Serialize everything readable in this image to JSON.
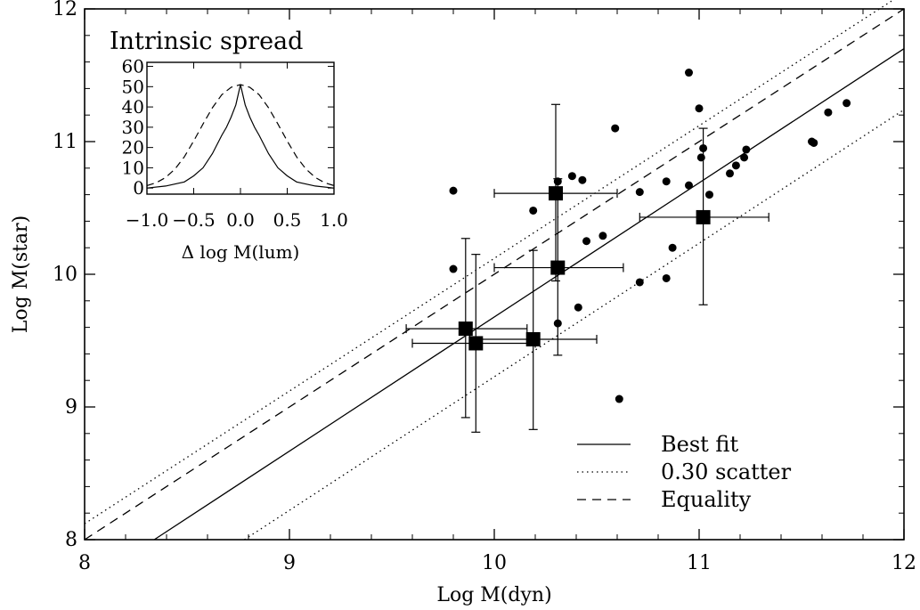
{
  "chart_data": [
    {
      "type": "scatter",
      "title": "",
      "xlabel": "Log M(dyn)",
      "ylabel": "Log M(star)",
      "xlim": [
        8,
        12
      ],
      "ylim": [
        8,
        12
      ],
      "xticks": [
        "8",
        "9",
        "10",
        "11",
        "12"
      ],
      "yticks": [
        "8",
        "9",
        "10",
        "11",
        "12"
      ],
      "legend": {
        "placement": "bottom-right",
        "entries": [
          {
            "label": "Best fit",
            "style": "solid"
          },
          {
            "label": "0.30 scatter",
            "style": "dotted"
          },
          {
            "label": "Equality",
            "style": "dashed"
          }
        ]
      },
      "lines": {
        "best_fit": {
          "x": [
            8.34,
            12.0
          ],
          "y": [
            8.0,
            11.7
          ]
        },
        "scatter_upper": {
          "x": [
            8.0,
            12.0
          ],
          "y": [
            8.12,
            12.12
          ]
        },
        "scatter_lower": {
          "x": [
            8.78,
            12.0
          ],
          "y": [
            8.0,
            11.24
          ]
        },
        "equality": {
          "x": [
            8.0,
            12.0
          ],
          "y": [
            8.0,
            12.0
          ]
        }
      },
      "points": [
        {
          "x": 9.8,
          "y": 10.63
        },
        {
          "x": 9.8,
          "y": 10.04
        },
        {
          "x": 10.19,
          "y": 10.48
        },
        {
          "x": 10.31,
          "y": 10.7
        },
        {
          "x": 10.38,
          "y": 10.74
        },
        {
          "x": 10.43,
          "y": 10.71
        },
        {
          "x": 10.45,
          "y": 10.25
        },
        {
          "x": 10.53,
          "y": 10.29
        },
        {
          "x": 10.59,
          "y": 11.1
        },
        {
          "x": 10.31,
          "y": 9.63
        },
        {
          "x": 10.41,
          "y": 9.75
        },
        {
          "x": 10.61,
          "y": 9.06
        },
        {
          "x": 10.71,
          "y": 10.62
        },
        {
          "x": 10.71,
          "y": 9.94
        },
        {
          "x": 10.84,
          "y": 10.7
        },
        {
          "x": 10.84,
          "y": 9.97
        },
        {
          "x": 10.87,
          "y": 10.2
        },
        {
          "x": 10.95,
          "y": 11.52
        },
        {
          "x": 10.95,
          "y": 10.67
        },
        {
          "x": 11.0,
          "y": 11.25
        },
        {
          "x": 11.01,
          "y": 10.88
        },
        {
          "x": 11.02,
          "y": 10.95
        },
        {
          "x": 11.05,
          "y": 10.6
        },
        {
          "x": 11.15,
          "y": 10.76
        },
        {
          "x": 11.18,
          "y": 10.82
        },
        {
          "x": 11.22,
          "y": 10.88
        },
        {
          "x": 11.23,
          "y": 10.94
        },
        {
          "x": 11.55,
          "y": 11.0
        },
        {
          "x": 11.56,
          "y": 10.99
        },
        {
          "x": 11.63,
          "y": 11.22
        },
        {
          "x": 11.72,
          "y": 11.29
        }
      ],
      "binned": [
        {
          "x": 9.86,
          "y": 9.59,
          "x_lo": 9.57,
          "x_hi": 10.16,
          "y_lo": 8.92,
          "y_hi": 10.27
        },
        {
          "x": 9.91,
          "y": 9.48,
          "x_lo": 9.6,
          "x_hi": 10.2,
          "y_lo": 8.81,
          "y_hi": 10.15
        },
        {
          "x": 10.19,
          "y": 9.51,
          "x_lo": 9.88,
          "x_hi": 10.5,
          "y_lo": 8.83,
          "y_hi": 10.18
        },
        {
          "x": 10.3,
          "y": 10.61,
          "x_lo": 10.0,
          "x_hi": 10.6,
          "y_lo": 9.95,
          "y_hi": 11.28
        },
        {
          "x": 10.31,
          "y": 10.05,
          "x_lo": 10.0,
          "x_hi": 10.63,
          "y_lo": 9.39,
          "y_hi": 10.72
        },
        {
          "x": 11.02,
          "y": 10.43,
          "x_lo": 10.71,
          "x_hi": 11.34,
          "y_lo": 9.77,
          "y_hi": 11.1
        }
      ]
    },
    {
      "type": "line",
      "title": "Intrinsic spread",
      "xlabel": "Δ log M(lum)",
      "ylabel": "",
      "xlim": [
        -1.0,
        1.0
      ],
      "ylim": [
        -3,
        62
      ],
      "xticks": [
        "−1.0",
        "−0.5",
        "0.0",
        "0.5",
        "1.0"
      ],
      "yticks": [
        "0",
        "10",
        "20",
        "30",
        "40",
        "50",
        "60"
      ],
      "series": [
        {
          "style": "solid",
          "x": [
            -1.0,
            -0.8,
            -0.6,
            -0.5,
            -0.4,
            -0.3,
            -0.2,
            -0.15,
            -0.1,
            -0.05,
            0.0,
            0.05,
            0.1,
            0.15,
            0.2,
            0.3,
            0.4,
            0.5,
            0.6,
            0.8,
            1.0
          ],
          "y": [
            0,
            1,
            3,
            6,
            10,
            17,
            26,
            30,
            35,
            41,
            51,
            41,
            35,
            30,
            26,
            17,
            10,
            6,
            3,
            1,
            0
          ]
        },
        {
          "style": "dashed",
          "x": [
            -1.0,
            -0.9,
            -0.8,
            -0.7,
            -0.6,
            -0.5,
            -0.4,
            -0.3,
            -0.2,
            -0.1,
            0.0,
            0.1,
            0.2,
            0.3,
            0.4,
            0.5,
            0.6,
            0.7,
            0.8,
            0.9,
            1.0
          ],
          "y": [
            1.2,
            2.6,
            5.2,
            9.4,
            15.4,
            23.2,
            31.6,
            39.6,
            46.0,
            49.7,
            51.0,
            49.7,
            46.0,
            39.6,
            31.6,
            23.2,
            15.4,
            9.4,
            5.2,
            2.6,
            1.2
          ]
        }
      ]
    }
  ]
}
